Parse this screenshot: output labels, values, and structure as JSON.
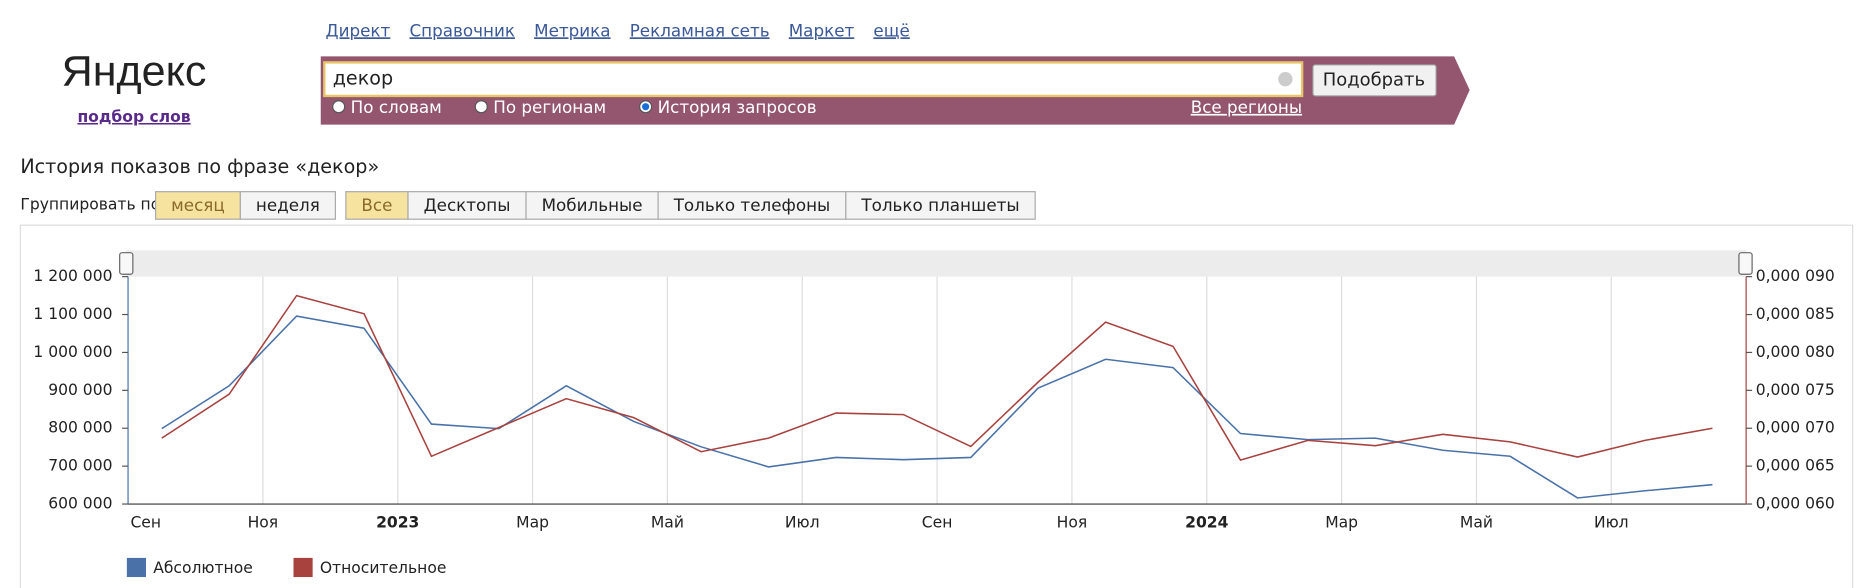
{
  "header": {
    "logo": "Яндекс",
    "subtitle": "подбор слов",
    "nav": [
      "Директ",
      "Справочник",
      "Метрика",
      "Рекламная сеть",
      "Маркет",
      "ещё"
    ]
  },
  "search": {
    "query": "декор",
    "button": "Подобрать",
    "modes": [
      "По словам",
      "По регионам",
      "История запросов"
    ],
    "mode_selected": 2,
    "region": "Все регионы"
  },
  "page": {
    "heading": "История показов по фразе «декор»",
    "group_label": "Группировать по:",
    "group_options": [
      "месяц",
      "неделя"
    ],
    "group_selected": 0,
    "device_options": [
      "Все",
      "Десктопы",
      "Мобильные",
      "Только телефоны",
      "Только планшеты"
    ],
    "device_selected": 0
  },
  "chart_data": {
    "type": "line",
    "categories": [
      "Сен",
      null,
      "Ноя",
      null,
      "2023",
      null,
      "Мар",
      null,
      "Май",
      null,
      "Июл",
      null,
      "Сен",
      null,
      "Ноя",
      null,
      "2024",
      null,
      "Мар",
      null,
      "Май",
      null,
      "Июл",
      null
    ],
    "series": [
      {
        "name": "Абсолютное",
        "color": "#4a72a8",
        "values": [
          799000,
          912000,
          1096000,
          1064000,
          811000,
          799000,
          912000,
          818000,
          751000,
          698000,
          723000,
          717000,
          723000,
          906000,
          982000,
          960000,
          786000,
          770000,
          774000,
          742000,
          726000,
          616000,
          635000,
          651000
        ]
      },
      {
        "name": "Относительное",
        "color": "#a8423f",
        "axis": "y2",
        "values": [
          6.87e-05,
          7.45e-05,
          8.75e-05,
          8.51e-05,
          6.63e-05,
          7.01e-05,
          7.39e-05,
          7.14e-05,
          6.69e-05,
          6.87e-05,
          7.2e-05,
          7.18e-05,
          6.76e-05,
          7.61e-05,
          8.4e-05,
          8.08e-05,
          6.58e-05,
          6.84e-05,
          6.77e-05,
          6.92e-05,
          6.82e-05,
          6.62e-05,
          6.84e-05,
          7e-05
        ]
      }
    ],
    "ylim": [
      600000,
      1200000
    ],
    "yticks": [
      {
        "value": 600000,
        "label": "600 000"
      },
      {
        "value": 700000,
        "label": "700 000"
      },
      {
        "value": 800000,
        "label": "800 000"
      },
      {
        "value": 900000,
        "label": "900 000"
      },
      {
        "value": 1000000,
        "label": "1 000 000"
      },
      {
        "value": 1100000,
        "label": "1 100 000"
      },
      {
        "value": 1200000,
        "label": "1 200 000"
      }
    ],
    "y2lim": [
      6e-05,
      9e-05
    ],
    "y2ticks": [
      {
        "value": 6e-05,
        "label": "0,000 060"
      },
      {
        "value": 6.5e-05,
        "label": "0,000 065"
      },
      {
        "value": 7e-05,
        "label": "0,000 070"
      },
      {
        "value": 7.5e-05,
        "label": "0,000 075"
      },
      {
        "value": 8e-05,
        "label": "0,000 080"
      },
      {
        "value": 8.5e-05,
        "label": "0,000 085"
      },
      {
        "value": 9e-05,
        "label": "0,000 090"
      }
    ],
    "grid": "x"
  }
}
